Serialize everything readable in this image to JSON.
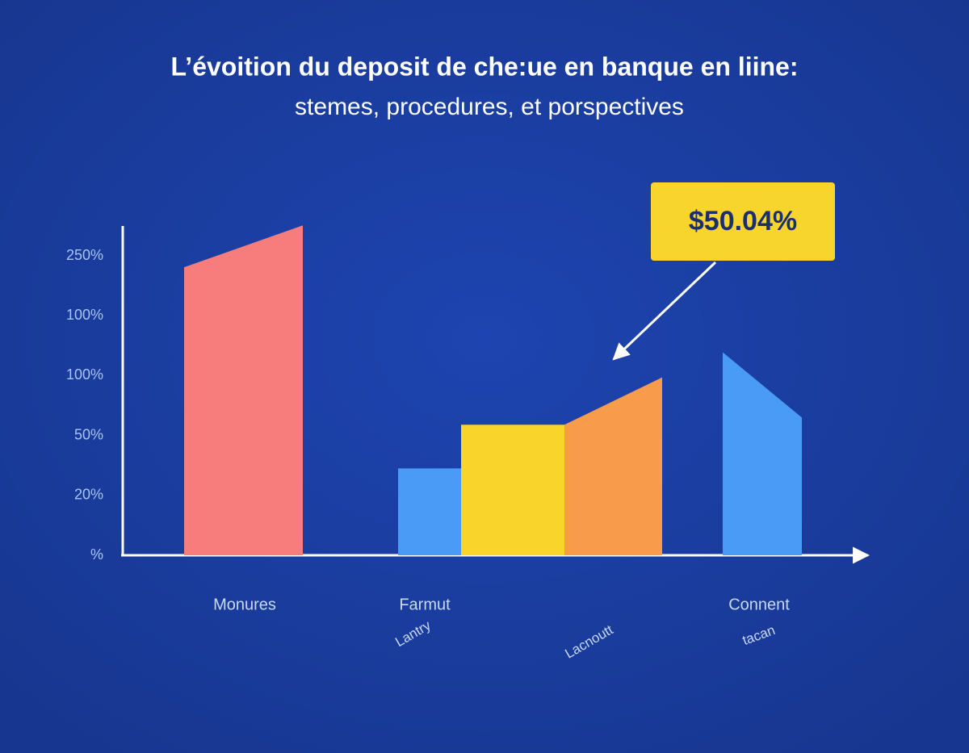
{
  "chart_data": {
    "type": "bar",
    "title": "L’évoition du deposit de che:ue en banque en liine:",
    "subtitle": "stemes, procedures, et porspectives",
    "categories": [
      "Monures",
      "Farmut",
      null,
      null,
      "Connent"
    ],
    "sublabels": [
      null,
      "Lantry",
      null,
      "Lacnoutt",
      "tacan"
    ],
    "values": [
      4.81,
      1.45,
      2.18,
      2.18,
      3.39
    ],
    "end_values": [
      5.51,
      1.45,
      2.18,
      2.97,
      2.3
    ],
    "colors": [
      "#f77c7c",
      "#4a9bf6",
      "#f9d52b",
      "#f89b4b",
      "#4a9bf6"
    ],
    "ylim": [
      0,
      5.5
    ],
    "ytick_labels": [
      "%",
      "20%",
      "50%",
      "100%",
      "100%",
      "250%"
    ],
    "annotation": "$50.04%"
  }
}
